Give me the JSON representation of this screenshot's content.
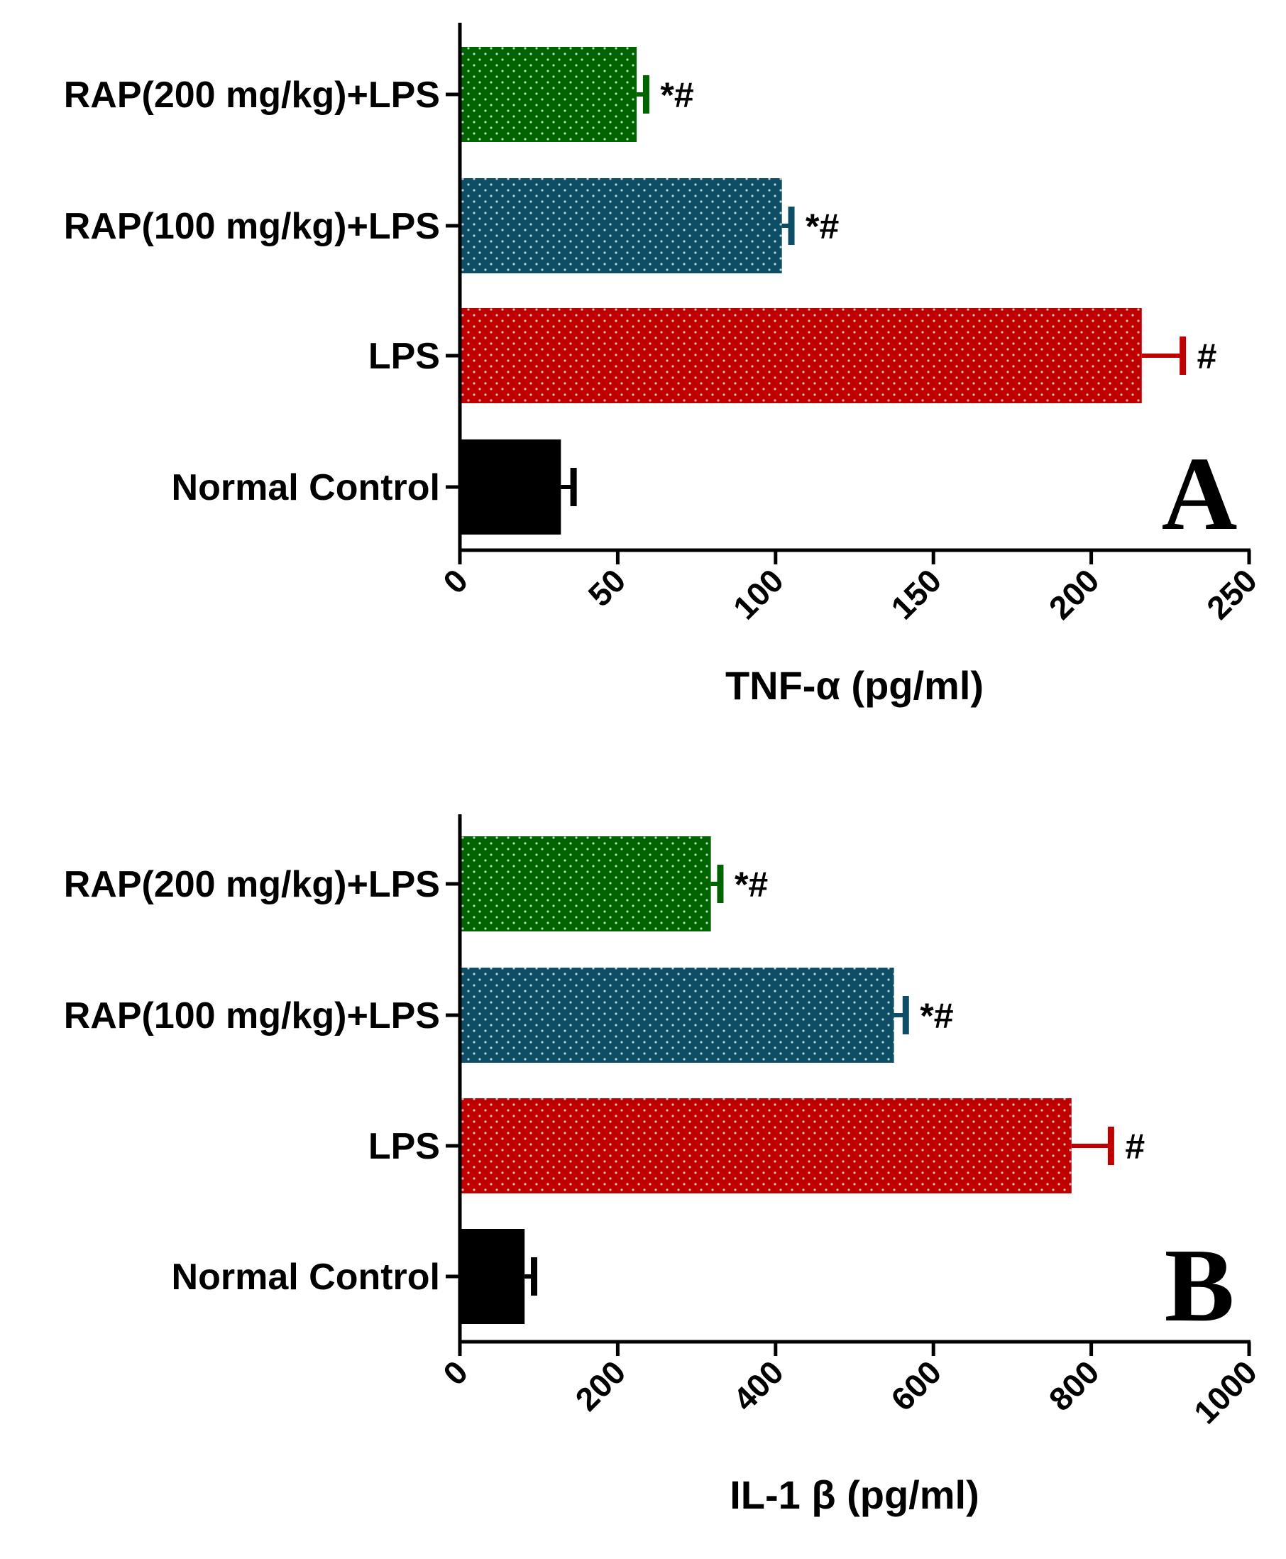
{
  "chart_data": [
    {
      "type": "bar",
      "orientation": "horizontal",
      "panel": "A",
      "xlabel": "TNF-α (pg/ml)",
      "ylabel": "",
      "xlim": [
        0,
        250
      ],
      "ticks": [
        "0",
        "50",
        "100",
        "150",
        "200",
        "250"
      ],
      "tick_values": [
        0,
        50,
        100,
        150,
        200,
        250
      ],
      "categories": [
        "RAP(200 mg/kg)+LPS",
        "RAP(100 mg/kg)+LPS",
        "LPS",
        "Normal Control"
      ],
      "values": [
        56,
        102,
        216,
        32
      ],
      "errors": [
        3,
        3,
        13,
        4
      ],
      "annotations": [
        "*#",
        "*#",
        "#",
        ""
      ],
      "colors": [
        "#006400",
        "#0e4d66",
        "#c00000",
        "#000000"
      ],
      "patterned": [
        true,
        true,
        true,
        false
      ]
    },
    {
      "type": "bar",
      "orientation": "horizontal",
      "panel": "B",
      "xlabel": "IL-1 β (pg/ml)",
      "ylabel": "",
      "xlim": [
        0,
        1000
      ],
      "ticks": [
        "0",
        "200",
        "400",
        "600",
        "800",
        "1000"
      ],
      "tick_values": [
        0,
        200,
        400,
        600,
        800,
        1000
      ],
      "categories": [
        "RAP(200 mg/kg)+LPS",
        "RAP(100 mg/kg)+LPS",
        "LPS",
        "Normal Control"
      ],
      "values": [
        318,
        550,
        775,
        82
      ],
      "errors": [
        12,
        15,
        50,
        12
      ],
      "annotations": [
        "*#",
        "*#",
        "#",
        ""
      ],
      "colors": [
        "#006400",
        "#0e4d66",
        "#c00000",
        "#000000"
      ],
      "patterned": [
        true,
        true,
        true,
        false
      ]
    }
  ]
}
